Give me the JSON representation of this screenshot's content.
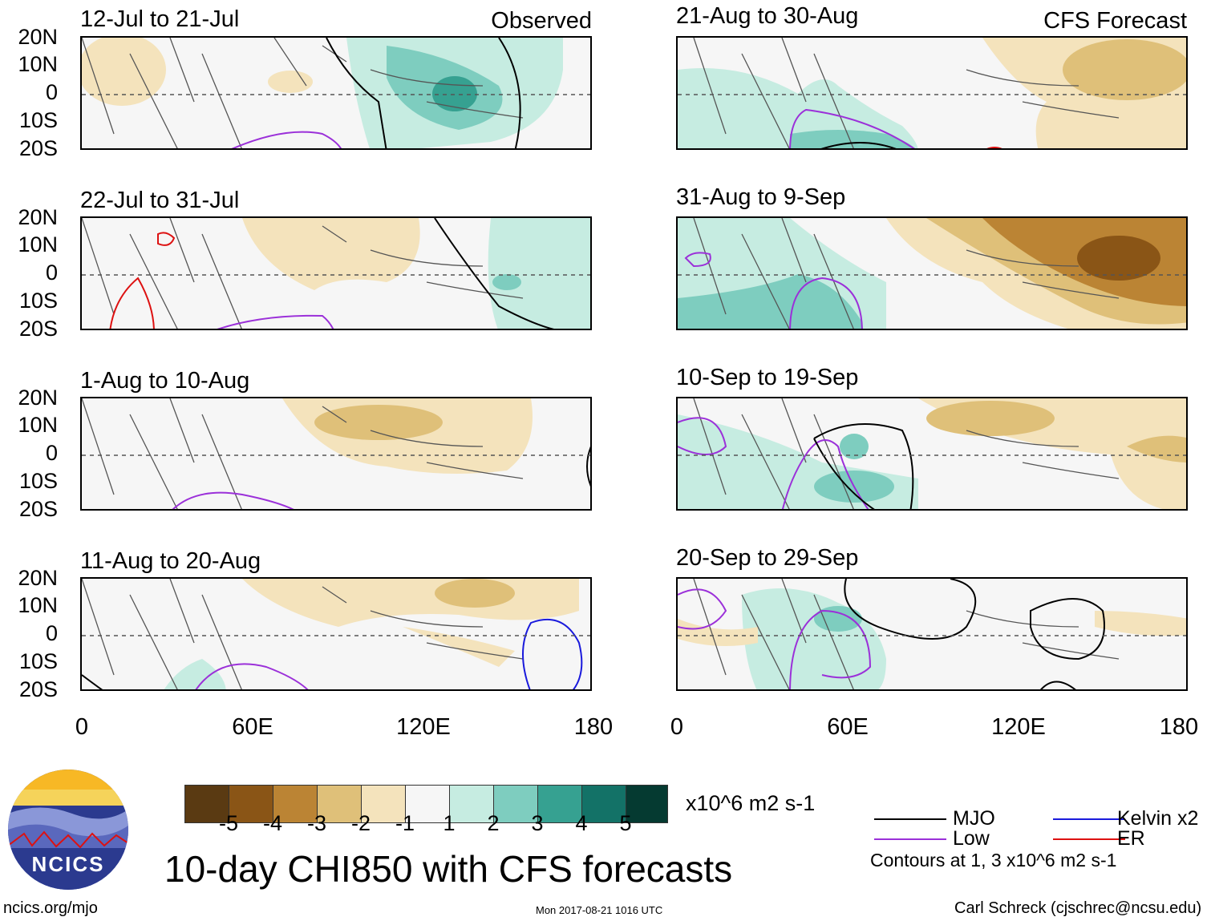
{
  "header": {
    "observed_label": "Observed",
    "forecast_label": "CFS Forecast"
  },
  "y_ticks": [
    "20N",
    "10N",
    "0",
    "10S",
    "20S"
  ],
  "x_ticks": [
    "0",
    "60E",
    "120E",
    "180"
  ],
  "panels_left": [
    {
      "title": "12-Jul to 21-Jul"
    },
    {
      "title": "22-Jul to 31-Jul"
    },
    {
      "title": "1-Aug to 10-Aug"
    },
    {
      "title": "11-Aug to 20-Aug"
    }
  ],
  "panels_right": [
    {
      "title": "21-Aug to 30-Aug"
    },
    {
      "title": "31-Aug to 9-Sep"
    },
    {
      "title": "10-Sep to 19-Sep"
    },
    {
      "title": "20-Sep to 29-Sep"
    }
  ],
  "colorbar": {
    "units": "x10^6 m2 s-1",
    "ticks": [
      "-5",
      "-4",
      "-3",
      "-2",
      "-1",
      "1",
      "2",
      "3",
      "4",
      "5"
    ],
    "colors": [
      "#5a3a12",
      "#8a5516",
      "#bb8434",
      "#dfc079",
      "#f4e3bc",
      "#f6f6f6",
      "#c6ece1",
      "#7ecdbf",
      "#36a191",
      "#137267",
      "#053a31"
    ]
  },
  "legend": {
    "mjo": "MJO",
    "kelvin": "Kelvin x2",
    "low": "Low",
    "er": "ER",
    "contours_note": "Contours at 1, 3 x10^6 m2 s-1",
    "colors": {
      "mjo": "#000000",
      "kelvin": "#1a1adc",
      "low": "#9b30d9",
      "er": "#dd1111"
    }
  },
  "logo": {
    "text": "NCICS"
  },
  "main_title": "10-day CHI850 with CFS forecasts",
  "footer": {
    "left": "ncics.org/mjo",
    "center": "Mon 2017-08-21 1016 UTC",
    "right": "Carl Schreck (cjschrec@ncsu.edu)"
  }
}
